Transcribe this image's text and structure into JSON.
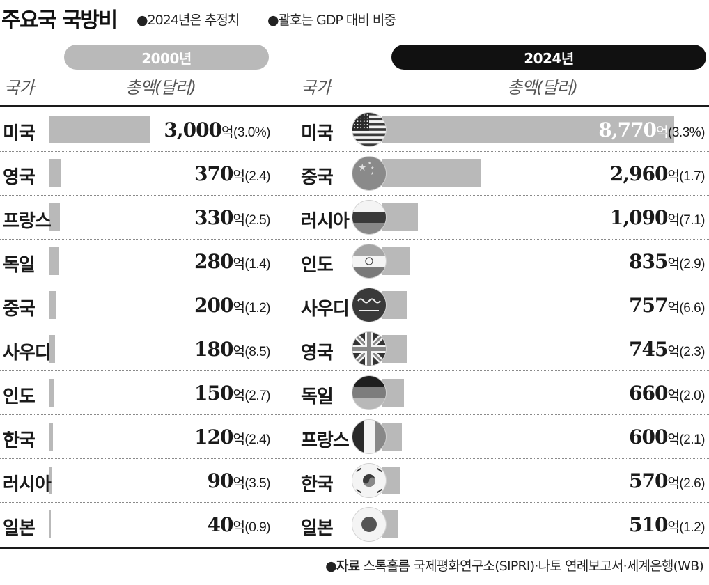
{
  "header": {
    "title": "주요국 국방비",
    "notes": [
      "●2024년은 추정치",
      "●괄호는 GDP 대비 비중"
    ]
  },
  "columns": {
    "left": {
      "year": "2000년",
      "country_header": "국가",
      "amount_header": "총액(달러)"
    },
    "right": {
      "year": "2024년",
      "country_header": "국가",
      "amount_header": "총액(달러)"
    }
  },
  "source": {
    "label": "●자료",
    "text": "스톡홀름 국제평화연구소(SIPRI)·나토 연례보고서·세계은행(WB)"
  },
  "chart_data": [
    {
      "type": "bar",
      "title": "2000년",
      "categories": [
        "미국",
        "영국",
        "프랑스",
        "독일",
        "중국",
        "사우디",
        "인도",
        "한국",
        "러시아",
        "일본"
      ],
      "values": [
        3000,
        370,
        330,
        280,
        200,
        180,
        150,
        120,
        90,
        40
      ],
      "value_labels": [
        "3,000",
        "370",
        "330",
        "280",
        "200",
        "180",
        "150",
        "120",
        "90",
        "40"
      ],
      "gdp_share_labels": [
        "(3.0%)",
        "(2.4)",
        "(2.5)",
        "(1.4)",
        "(1.2)",
        "(8.5)",
        "(2.7)",
        "(2.4)",
        "(3.5)",
        "(0.9)"
      ],
      "unit": "억",
      "bar_color": "#b9b9b9"
    },
    {
      "type": "bar",
      "title": "2024년",
      "categories": [
        "미국",
        "중국",
        "러시아",
        "인도",
        "사우디",
        "영국",
        "독일",
        "프랑스",
        "한국",
        "일본"
      ],
      "values": [
        8770,
        2960,
        1090,
        835,
        757,
        745,
        660,
        600,
        570,
        510
      ],
      "value_labels": [
        "8,770",
        "2,960",
        "1,090",
        "835",
        "757",
        "745",
        "660",
        "600",
        "570",
        "510"
      ],
      "gdp_share_labels": [
        "(3.3%)",
        "(1.7)",
        "(7.1)",
        "(2.9)",
        "(6.6)",
        "(2.3)",
        "(2.0)",
        "(2.1)",
        "(2.6)",
        "(1.2)"
      ],
      "flags": [
        "us-flag-icon",
        "china-flag-icon",
        "russia-flag-icon",
        "india-flag-icon",
        "saudi-flag-icon",
        "uk-flag-icon",
        "germany-flag-icon",
        "france-flag-icon",
        "korea-flag-icon",
        "japan-flag-icon"
      ],
      "unit": "억",
      "bar_color": "#b9b9b9"
    }
  ]
}
